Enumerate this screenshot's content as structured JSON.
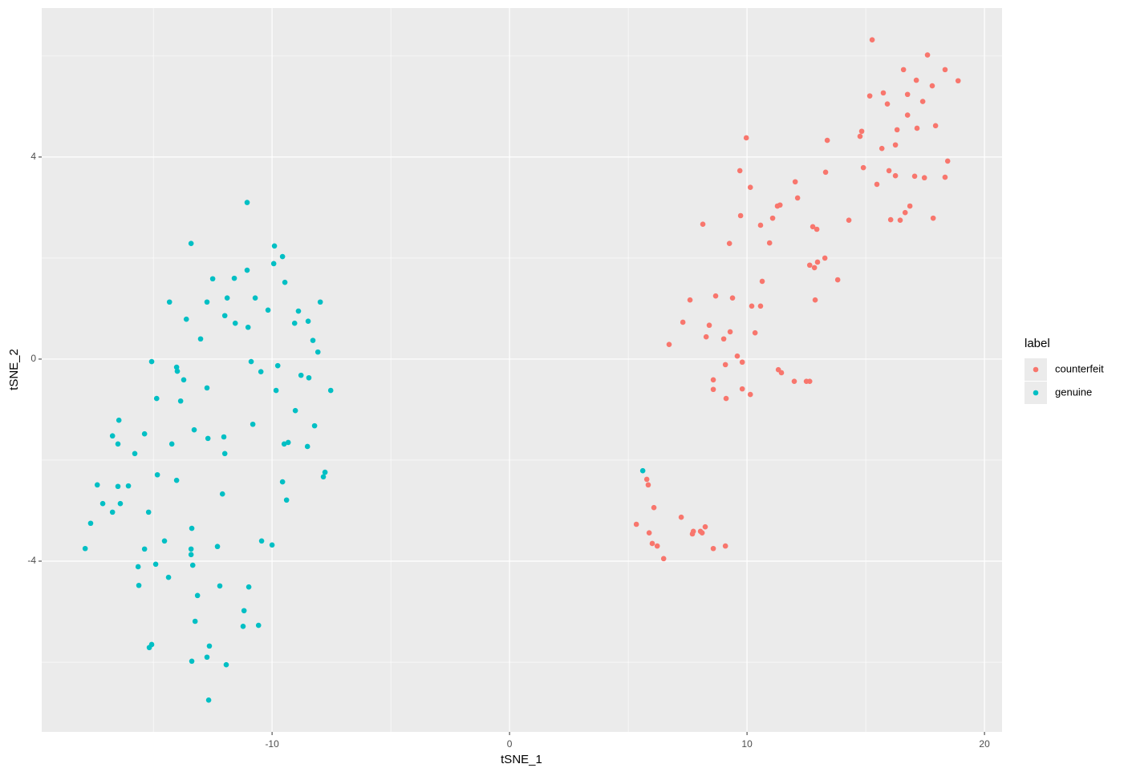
{
  "chart_data": {
    "type": "scatter",
    "x_label": "tSNE_1",
    "y_label": "tSNE_2",
    "legend_title": "label",
    "xlim": [
      -19.7,
      20.74
    ],
    "ylim": [
      -7.38,
      6.95
    ],
    "xticks": [
      -10,
      0,
      10,
      20
    ],
    "yticks": [
      -4,
      0,
      4
    ],
    "grid": true,
    "legend_position": "right",
    "series": [
      {
        "name": "counterfeit",
        "color": "#F8766D",
        "x": [
          15.27,
          17.6,
          16.59,
          18.34,
          18.89,
          17.13,
          17.8,
          15.74,
          15.17,
          16.76,
          15.91,
          17.4,
          16.76,
          17.94,
          16.32,
          17.16,
          14.83,
          14.76,
          9.97,
          13.38,
          16.25,
          15.68,
          18.45,
          9.7,
          14.9,
          15.98,
          13.31,
          16.25,
          17.06,
          17.47,
          18.34,
          12.03,
          15.47,
          10.14,
          11.39,
          11.28,
          12.13,
          16.86,
          16.66,
          16.05,
          16.45,
          9.73,
          11.08,
          17.84,
          14.29,
          8.14,
          10.57,
          12.77,
          12.94,
          10.95,
          9.26,
          13.28,
          12.97,
          12.64,
          12.84,
          10.64,
          13.82,
          8.68,
          9.39,
          7.6,
          12.87,
          10.2,
          10.57,
          7.3,
          8.41,
          9.29,
          10.34,
          8.28,
          9.02,
          6.72,
          9.59,
          9.8,
          9.09,
          11.32,
          11.45,
          8.58,
          11.99,
          12.64,
          12.5,
          8.58,
          9.8,
          9.12,
          10.14,
          5.78,
          5.84,
          6.08,
          7.23,
          8.24,
          8.04,
          7.74,
          7.7,
          8.11,
          5.88,
          5.34,
          6.01,
          6.22,
          8.58,
          9.09,
          6.49
        ],
        "y": [
          6.32,
          6.02,
          5.73,
          5.73,
          5.51,
          5.52,
          5.41,
          5.27,
          5.21,
          5.24,
          5.05,
          5.1,
          4.83,
          4.62,
          4.54,
          4.57,
          4.51,
          4.41,
          4.38,
          4.33,
          4.24,
          4.17,
          3.92,
          3.73,
          3.79,
          3.73,
          3.7,
          3.63,
          3.62,
          3.59,
          3.6,
          3.51,
          3.46,
          3.4,
          3.05,
          3.03,
          3.19,
          3.03,
          2.9,
          2.76,
          2.75,
          2.84,
          2.79,
          2.79,
          2.75,
          2.67,
          2.65,
          2.62,
          2.57,
          2.3,
          2.29,
          2.0,
          1.92,
          1.86,
          1.81,
          1.54,
          1.57,
          1.25,
          1.21,
          1.17,
          1.17,
          1.05,
          1.05,
          0.73,
          0.67,
          0.54,
          0.52,
          0.44,
          0.4,
          0.29,
          0.06,
          -0.06,
          -0.11,
          -0.21,
          -0.27,
          -0.41,
          -0.44,
          -0.44,
          -0.44,
          -0.6,
          -0.59,
          -0.78,
          -0.7,
          -2.38,
          -2.49,
          -2.94,
          -3.13,
          -3.32,
          -3.41,
          -3.41,
          -3.46,
          -3.44,
          -3.44,
          -3.27,
          -3.65,
          -3.7,
          -3.75,
          -3.7,
          -3.95
        ]
      },
      {
        "name": "genuine",
        "color": "#00BFC4",
        "x": [
          -11.05,
          -13.41,
          -9.9,
          -9.56,
          -9.93,
          -11.05,
          -12.5,
          -11.59,
          -9.46,
          -14.32,
          -12.74,
          -10.71,
          -7.97,
          -11.89,
          -10.17,
          -8.89,
          -11.99,
          -13.61,
          -11.55,
          -9.05,
          -8.48,
          -11.01,
          -13.01,
          -8.28,
          -8.07,
          -15.07,
          -10.88,
          -9.76,
          -14.02,
          -13.99,
          -10.47,
          -13.72,
          -8.78,
          -8.45,
          -12.74,
          -9.83,
          -7.53,
          -14.86,
          -13.85,
          -9.02,
          -16.45,
          -10.81,
          -8.21,
          -13.28,
          -16.72,
          -15.37,
          -12.7,
          -12.03,
          -16.49,
          -14.22,
          -9.32,
          -9.49,
          -8.51,
          -15.78,
          -11.99,
          -7.77,
          -7.84,
          -14.83,
          -14.02,
          -17.36,
          -16.49,
          -16.05,
          -9.56,
          -12.09,
          -17.13,
          -16.39,
          -16.72,
          -9.39,
          -15.2,
          -17.64,
          -14.53,
          -13.38,
          -10.44,
          -10.0,
          -17.87,
          -15.37,
          -13.41,
          -12.3,
          -13.41,
          -14.9,
          -13.34,
          -15.64,
          -14.36,
          -15.61,
          -12.2,
          -10.98,
          -13.14,
          -11.18,
          -13.24,
          -10.57,
          -11.22,
          -15.07,
          -15.17,
          -12.64,
          -13.38,
          -12.74,
          -11.93,
          -12.67,
          5.61
        ],
        "y": [
          3.1,
          2.29,
          2.24,
          2.03,
          1.89,
          1.76,
          1.59,
          1.6,
          1.52,
          1.13,
          1.13,
          1.21,
          1.13,
          1.21,
          0.97,
          0.95,
          0.86,
          0.79,
          0.71,
          0.71,
          0.75,
          0.63,
          0.4,
          0.37,
          0.14,
          -0.05,
          -0.05,
          -0.13,
          -0.16,
          -0.24,
          -0.25,
          -0.41,
          -0.32,
          -0.37,
          -0.57,
          -0.62,
          -0.62,
          -0.78,
          -0.83,
          -1.02,
          -1.21,
          -1.29,
          -1.32,
          -1.4,
          -1.52,
          -1.48,
          -1.57,
          -1.54,
          -1.68,
          -1.68,
          -1.65,
          -1.68,
          -1.73,
          -1.87,
          -1.87,
          -2.24,
          -2.33,
          -2.29,
          -2.4,
          -2.49,
          -2.52,
          -2.51,
          -2.43,
          -2.67,
          -2.86,
          -2.86,
          -3.03,
          -2.79,
          -3.03,
          -3.25,
          -3.6,
          -3.35,
          -3.6,
          -3.68,
          -3.75,
          -3.76,
          -3.76,
          -3.71,
          -3.87,
          -4.06,
          -4.08,
          -4.11,
          -4.32,
          -4.48,
          -4.49,
          -4.51,
          -4.68,
          -4.98,
          -5.19,
          -5.27,
          -5.29,
          -5.65,
          -5.71,
          -5.68,
          -5.98,
          -5.9,
          -6.05,
          -6.75,
          -2.21
        ]
      }
    ]
  }
}
